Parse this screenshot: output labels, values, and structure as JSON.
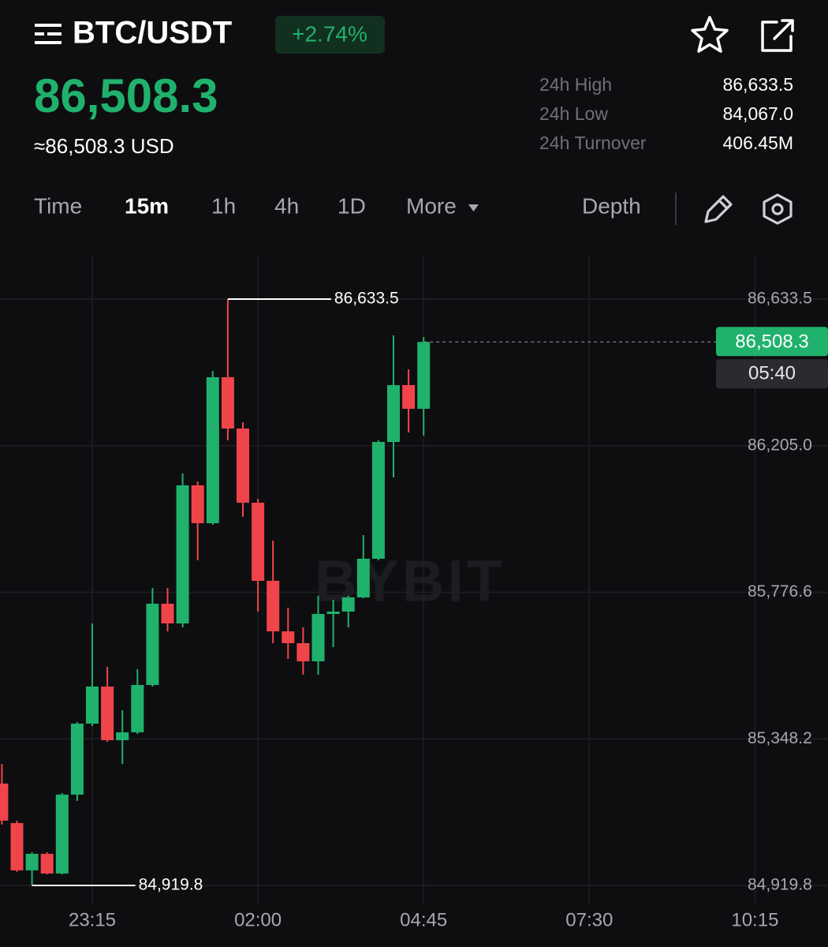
{
  "header": {
    "title": "BTC/USDT",
    "change": "+2.74%",
    "price": "86,508.3",
    "price_usd": "≈86,508.3 USD"
  },
  "stats": [
    {
      "label": "24h High",
      "value": "86,633.5"
    },
    {
      "label": "24h Low",
      "value": "84,067.0"
    },
    {
      "label": "24h Turnover",
      "value": "406.45M"
    }
  ],
  "tabs": [
    {
      "label": "Time"
    },
    {
      "label": "15m",
      "active": true
    },
    {
      "label": "1h"
    },
    {
      "label": "4h"
    },
    {
      "label": "1D"
    },
    {
      "label": "More"
    },
    {
      "label": "Depth"
    }
  ],
  "chart_data": {
    "type": "candlestick",
    "watermark": "BYBIT",
    "up_color": "#20b26c",
    "down_color": "#ef454a",
    "categories": [
      null,
      null,
      null,
      null,
      null,
      null,
      "23:15",
      null,
      null,
      null,
      null,
      null,
      null,
      null,
      null,
      null,
      null,
      "02:00",
      null,
      null,
      null,
      null,
      null,
      null,
      null,
      null,
      null,
      null,
      "04:45",
      null,
      null,
      null,
      null,
      null,
      null,
      null,
      null,
      null,
      null,
      "07:30",
      null,
      null,
      null,
      null,
      null,
      null,
      null,
      null,
      null,
      null,
      "10:15"
    ],
    "open": [
      85217.5,
      85102.2,
      84963.8,
      85012.2,
      84954.6,
      85185.3,
      85392.7,
      85501.1,
      85344.3,
      85367.3,
      85505.7,
      85743.2,
      85685.6,
      86089.2,
      85978.5,
      86405.2,
      86255.2,
      86038.4,
      85810.1,
      85662.5,
      85627.9,
      85574.9,
      85713.2,
      85720.2,
      85761.7,
      85874.7,
      86216.0,
      86382.1,
      86312.9,
      null,
      null,
      null,
      null,
      null,
      null,
      null,
      null,
      null,
      null,
      null,
      null,
      null,
      null,
      null,
      null,
      null,
      null,
      null,
      null,
      null,
      null
    ],
    "high": [
      85275.1,
      85109.1,
      85016.8,
      85016.8,
      85189.8,
      85397.3,
      85685.6,
      85558.8,
      85431.9,
      85551.8,
      85789.4,
      85789.4,
      86123.8,
      86100.7,
      86423.6,
      86633.5,
      86273.7,
      86050.0,
      85927.7,
      85731.7,
      85674.0,
      85766.3,
      85754.8,
      85766.3,
      85943.9,
      86220.7,
      86527.4,
      86428.2,
      86522.8,
      null,
      null,
      null,
      null,
      null,
      null,
      null,
      null,
      null,
      null,
      null,
      null,
      null,
      null,
      null,
      null,
      null,
      null,
      null,
      null,
      null,
      null
    ],
    "low": [
      85097.6,
      84959.2,
      84919.8,
      84952.3,
      84952.3,
      85166.8,
      85385.8,
      85339.7,
      85275.1,
      85362.7,
      85501.1,
      85662.5,
      85674.0,
      85870.1,
      85973.9,
      86220.7,
      85997.0,
      85720.2,
      85627.9,
      85581.8,
      85535.7,
      85535.7,
      85616.4,
      85674.0,
      85759.3,
      85870.1,
      86112.2,
      86243.7,
      86234.5,
      null,
      null,
      null,
      null,
      null,
      null,
      null,
      null,
      null,
      null,
      null,
      null,
      null,
      null,
      null,
      null,
      null,
      null,
      null,
      null,
      null,
      null
    ],
    "close": [
      85109.1,
      84963.8,
      85012.2,
      84954.6,
      85185.3,
      85392.7,
      85501.1,
      85344.3,
      85367.3,
      85505.7,
      85743.2,
      85685.6,
      86089.2,
      85978.5,
      86405.2,
      86255.2,
      86038.4,
      85810.1,
      85662.5,
      85627.9,
      85574.9,
      85713.2,
      85720.2,
      85761.7,
      85874.7,
      86216.0,
      86382.1,
      86312.9,
      86508.3,
      null,
      null,
      null,
      null,
      null,
      null,
      null,
      null,
      null,
      null,
      null,
      null,
      null,
      null,
      null,
      null,
      null,
      null,
      null,
      null,
      null,
      null
    ],
    "ylim": [
      84866.7,
      86758.1
    ],
    "yticks": [
      {
        "value": 86633.5,
        "label": "86,633.5"
      },
      {
        "value": 86205.0,
        "label": "86,205.0"
      },
      {
        "value": 85776.6,
        "label": "85,776.6"
      },
      {
        "value": 85348.2,
        "label": "85,348.2"
      },
      {
        "value": 84919.8,
        "label": "84,919.8"
      }
    ],
    "grid": true,
    "high_marker": {
      "value": 86633.5,
      "label": "86,633.5"
    },
    "low_marker": {
      "value": 84919.8,
      "label": "84,919.8"
    },
    "last_price": {
      "value": 86508.3,
      "label": "86,508.3"
    },
    "countdown": "05:40"
  }
}
